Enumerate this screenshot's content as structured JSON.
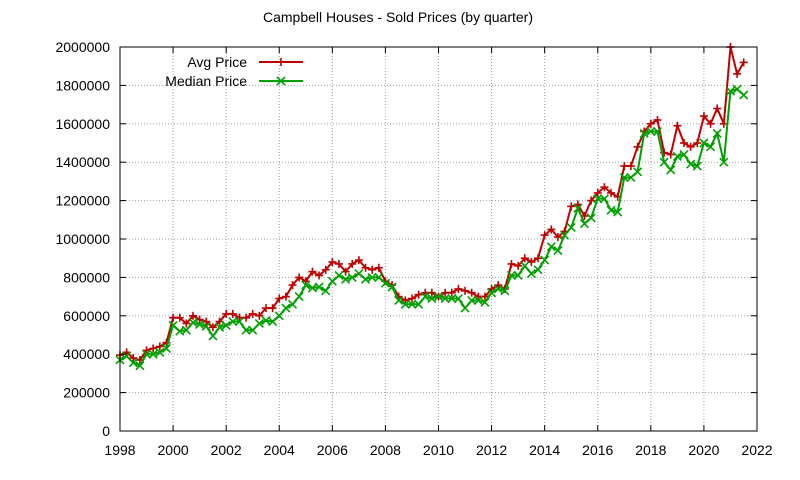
{
  "chart_data": {
    "type": "line",
    "title": "Campbell Houses - Sold Prices (by quarter)",
    "xlabel": "",
    "ylabel": "",
    "xlim": [
      1998,
      2022
    ],
    "ylim": [
      0,
      2000000
    ],
    "xticks": [
      "1998",
      "2000",
      "2002",
      "2004",
      "2006",
      "2008",
      "2010",
      "2012",
      "2014",
      "2016",
      "2018",
      "2020",
      "2022"
    ],
    "yticks": [
      "0",
      "200000",
      "400000",
      "600000",
      "800000",
      "1000000",
      "1200000",
      "1400000",
      "1600000",
      "1800000",
      "2000000"
    ],
    "grid": true,
    "legend_position": "top-left",
    "series": [
      {
        "name": "Avg Price",
        "color": "#c00000",
        "marker": "plus",
        "x": [
          1998.0,
          1998.25,
          1998.5,
          1998.75,
          1999.0,
          1999.25,
          1999.5,
          1999.75,
          2000.0,
          2000.25,
          2000.5,
          2000.75,
          2001.0,
          2001.25,
          2001.5,
          2001.75,
          2002.0,
          2002.25,
          2002.5,
          2002.75,
          2003.0,
          2003.25,
          2003.5,
          2003.75,
          2004.0,
          2004.25,
          2004.5,
          2004.75,
          2005.0,
          2005.25,
          2005.5,
          2005.75,
          2006.0,
          2006.25,
          2006.5,
          2006.75,
          2007.0,
          2007.25,
          2007.5,
          2007.75,
          2008.0,
          2008.25,
          2008.5,
          2008.75,
          2009.0,
          2009.25,
          2009.5,
          2009.75,
          2010.0,
          2010.25,
          2010.5,
          2010.75,
          2011.0,
          2011.25,
          2011.5,
          2011.75,
          2012.0,
          2012.25,
          2012.5,
          2012.75,
          2013.0,
          2013.25,
          2013.5,
          2013.75,
          2014.0,
          2014.25,
          2014.5,
          2014.75,
          2015.0,
          2015.25,
          2015.5,
          2015.75,
          2016.0,
          2016.25,
          2016.5,
          2016.75,
          2017.0,
          2017.25,
          2017.5,
          2017.75,
          2018.0,
          2018.25,
          2018.5,
          2018.75,
          2019.0,
          2019.25,
          2019.5,
          2019.75,
          2020.0,
          2020.25,
          2020.5,
          2020.75,
          2021.0,
          2021.25,
          2021.5
        ],
        "values": [
          395000,
          410000,
          380000,
          370000,
          420000,
          430000,
          440000,
          460000,
          590000,
          590000,
          560000,
          600000,
          580000,
          570000,
          540000,
          570000,
          610000,
          610000,
          590000,
          590000,
          610000,
          600000,
          640000,
          640000,
          690000,
          700000,
          760000,
          800000,
          780000,
          830000,
          810000,
          840000,
          880000,
          870000,
          830000,
          870000,
          890000,
          850000,
          840000,
          850000,
          780000,
          760000,
          700000,
          680000,
          690000,
          710000,
          720000,
          720000,
          700000,
          720000,
          720000,
          740000,
          730000,
          720000,
          700000,
          700000,
          740000,
          760000,
          740000,
          870000,
          860000,
          900000,
          880000,
          900000,
          1020000,
          1050000,
          1010000,
          1040000,
          1170000,
          1180000,
          1120000,
          1200000,
          1240000,
          1270000,
          1240000,
          1220000,
          1380000,
          1380000,
          1480000,
          1560000,
          1600000,
          1620000,
          1450000,
          1440000,
          1590000,
          1500000,
          1480000,
          1500000,
          1640000,
          1600000,
          1680000,
          1600000,
          2000000,
          1860000,
          1920000
        ]
      },
      {
        "name": "Median Price",
        "color": "#00a000",
        "marker": "x",
        "x": [
          1998.0,
          1998.25,
          1998.5,
          1998.75,
          1999.0,
          1999.25,
          1999.5,
          1999.75,
          2000.0,
          2000.25,
          2000.5,
          2000.75,
          2001.0,
          2001.25,
          2001.5,
          2001.75,
          2002.0,
          2002.25,
          2002.5,
          2002.75,
          2003.0,
          2003.25,
          2003.5,
          2003.75,
          2004.0,
          2004.25,
          2004.5,
          2004.75,
          2005.0,
          2005.25,
          2005.5,
          2005.75,
          2006.0,
          2006.25,
          2006.5,
          2006.75,
          2007.0,
          2007.25,
          2007.5,
          2007.75,
          2008.0,
          2008.25,
          2008.5,
          2008.75,
          2009.0,
          2009.25,
          2009.5,
          2009.75,
          2010.0,
          2010.25,
          2010.5,
          2010.75,
          2011.0,
          2011.25,
          2011.5,
          2011.75,
          2012.0,
          2012.25,
          2012.5,
          2012.75,
          2013.0,
          2013.25,
          2013.5,
          2013.75,
          2014.0,
          2014.25,
          2014.5,
          2014.75,
          2015.0,
          2015.25,
          2015.5,
          2015.75,
          2016.0,
          2016.25,
          2016.5,
          2016.75,
          2017.0,
          2017.25,
          2017.5,
          2017.75,
          2018.0,
          2018.25,
          2018.5,
          2018.75,
          2019.0,
          2019.25,
          2019.5,
          2019.75,
          2020.0,
          2020.25,
          2020.5,
          2020.75,
          2021.0,
          2021.25,
          2021.5
        ],
        "values": [
          370000,
          390000,
          355000,
          340000,
          400000,
          400000,
          410000,
          430000,
          550000,
          520000,
          525000,
          565000,
          555000,
          545000,
          495000,
          540000,
          550000,
          570000,
          570000,
          525000,
          525000,
          560000,
          575000,
          570000,
          600000,
          640000,
          660000,
          700000,
          760000,
          745000,
          750000,
          730000,
          780000,
          810000,
          790000,
          800000,
          820000,
          790000,
          800000,
          800000,
          770000,
          750000,
          680000,
          660000,
          660000,
          660000,
          700000,
          690000,
          700000,
          690000,
          690000,
          690000,
          640000,
          680000,
          680000,
          670000,
          720000,
          740000,
          730000,
          810000,
          810000,
          860000,
          820000,
          840000,
          890000,
          960000,
          940000,
          1020000,
          1060000,
          1160000,
          1080000,
          1110000,
          1210000,
          1210000,
          1150000,
          1140000,
          1320000,
          1320000,
          1350000,
          1550000,
          1560000,
          1560000,
          1400000,
          1360000,
          1430000,
          1440000,
          1390000,
          1380000,
          1500000,
          1480000,
          1550000,
          1400000,
          1770000,
          1780000,
          1750000
        ]
      }
    ]
  }
}
